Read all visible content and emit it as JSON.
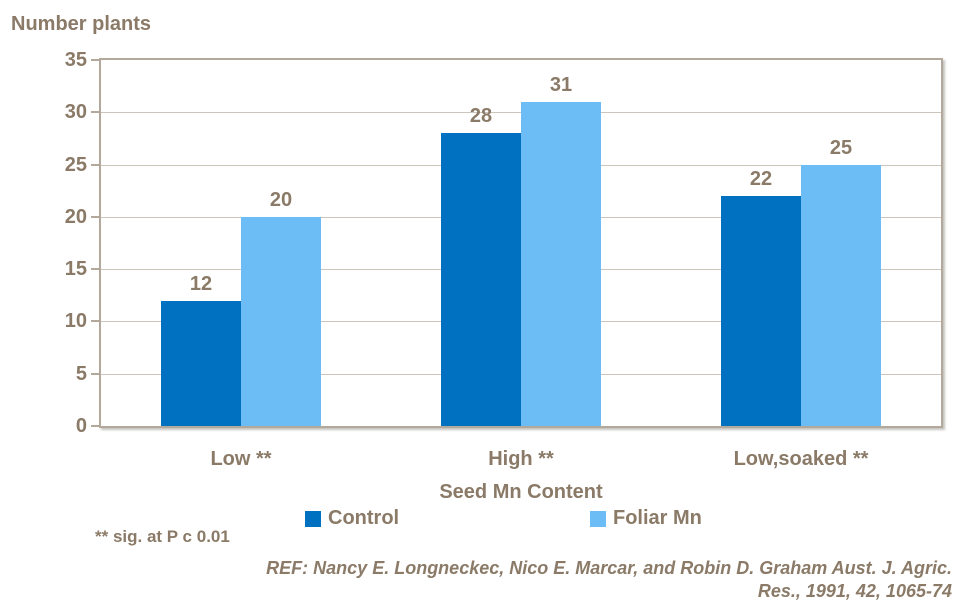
{
  "chart_data": {
    "type": "bar",
    "title": "Number plants",
    "xlabel": "Seed Mn Content",
    "ylabel": "Number plants",
    "categories": [
      "Low **",
      "High **",
      "Low,soaked **"
    ],
    "series": [
      {
        "name": "Control",
        "color": "#0071C1",
        "values": [
          12,
          28,
          22
        ]
      },
      {
        "name": "Foliar Mn",
        "color": "#6CBDF5",
        "values": [
          20,
          31,
          25
        ]
      }
    ],
    "ylim": [
      0,
      35
    ],
    "yticks": [
      0,
      5,
      10,
      15,
      20,
      25,
      30,
      35
    ],
    "grid": true,
    "data_labels": true,
    "legend_position": "bottom"
  },
  "footnote": "** sig. at P c 0.01",
  "reference": {
    "line1": "REF: Nancy E. Longneckec, Nico E. Marcar, and Robin D. Graham Aust. J. Agric.",
    "line2": "Res., 1991, 42, 1065-74"
  },
  "colors": {
    "text": "#8A7A67",
    "gridline": "#CCC5BB",
    "axis_border": "#B2A89C",
    "control": "#0071C1",
    "foliar_mn": "#6CBDF5",
    "background": "#ffffff"
  }
}
